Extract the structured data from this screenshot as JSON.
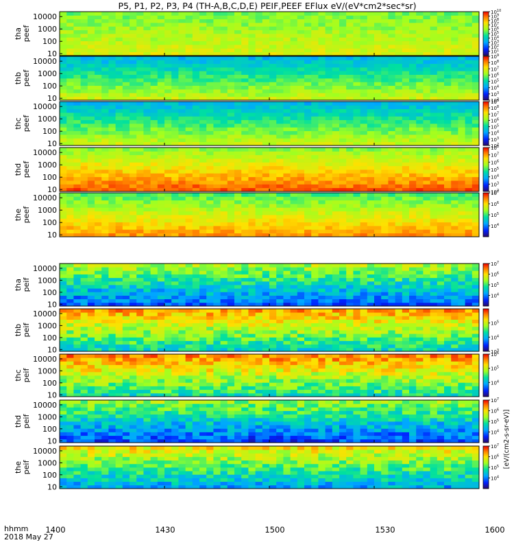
{
  "title": "P5, P1, P2, P3, P4 (TH-A,B,C,D,E) PEIF,PEEF EFlux eV/(eV*cm2*sec*sr)",
  "colorbar_unit_label": "[eV/(cm2-s-sr-eV)]",
  "x_axis": {
    "label_top": "hhmm",
    "label_bottom": "2018 May 27",
    "range": [
      "14:00",
      "16:00"
    ],
    "ticks": [
      "1400",
      "1430",
      "1500",
      "1530",
      "1600"
    ]
  },
  "y_ticks": [
    "10000",
    "1000",
    "100",
    "10"
  ],
  "chart_data": [
    {
      "type": "heatmap",
      "name": "tha peef",
      "ylabel": [
        "tha",
        "peef"
      ],
      "yscale": "log",
      "ylim": [
        7,
        25000
      ],
      "colorbar": {
        "scale": "log",
        "range": [
          1.0,
          10000000000.0
        ],
        "ticks": [
          "10^1",
          "10^2",
          "10^3",
          "10^4",
          "10^5",
          "10^6",
          "10^7",
          "10^8",
          "10^9",
          "10^10"
        ]
      },
      "level": 0.62
    },
    {
      "type": "heatmap",
      "name": "thb peef",
      "ylabel": [
        "thb",
        "peef"
      ],
      "yscale": "log",
      "ylim": [
        7,
        25000
      ],
      "colorbar": {
        "scale": "log",
        "range": [
          100.0,
          1000000000.0
        ],
        "ticks": [
          "10^2",
          "10^3",
          "10^4",
          "10^5",
          "10^6",
          "10^7",
          "10^8",
          "10^9"
        ]
      },
      "level": 0.5
    },
    {
      "type": "heatmap",
      "name": "thc peef",
      "ylabel": [
        "thc",
        "peef"
      ],
      "yscale": "log",
      "ylim": [
        7,
        25000
      ],
      "colorbar": {
        "scale": "log",
        "range": [
          100.0,
          1000000000.0
        ],
        "ticks": [
          "10^2",
          "10^3",
          "10^4",
          "10^5",
          "10^6",
          "10^7",
          "10^8",
          "10^9"
        ]
      },
      "level": 0.5
    },
    {
      "type": "heatmap",
      "name": "thd peef",
      "ylabel": [
        "thd",
        "peef"
      ],
      "yscale": "log",
      "ylim": [
        7,
        25000
      ],
      "colorbar": {
        "scale": "log",
        "range": [
          100.0,
          100000000.0
        ],
        "ticks": [
          "10^2",
          "10^3",
          "10^4",
          "10^5",
          "10^6",
          "10^7",
          "10^8"
        ]
      },
      "level": 0.75
    },
    {
      "type": "heatmap",
      "name": "the peef",
      "ylabel": [
        "the",
        "peef"
      ],
      "yscale": "log",
      "ylim": [
        7,
        25000
      ],
      "colorbar": {
        "scale": "log",
        "range": [
          1000.0,
          10000000.0
        ],
        "ticks": [
          "10^4",
          "10^5",
          "10^6",
          "10^7"
        ]
      },
      "level": 0.68
    },
    {
      "type": "heatmap",
      "name": "tha peif",
      "ylabel": [
        "tha",
        "peif"
      ],
      "yscale": "log",
      "ylim": [
        7,
        25000
      ],
      "colorbar": {
        "scale": "log",
        "range": [
          1000.0,
          10000000.0
        ],
        "ticks": [
          "10^4",
          "10^5",
          "10^6",
          "10^7"
        ]
      },
      "level": 0.35
    },
    {
      "type": "heatmap",
      "name": "thb peif",
      "ylabel": [
        "thb",
        "peif"
      ],
      "yscale": "log",
      "ylim": [
        7,
        25000
      ],
      "colorbar": {
        "scale": "log",
        "range": [
          1000.0,
          1000000.0
        ],
        "ticks": [
          "10^3",
          "10^4",
          "10^5"
        ]
      },
      "level": 0.55
    },
    {
      "type": "heatmap",
      "name": "thc peif",
      "ylabel": [
        "thc",
        "peif"
      ],
      "yscale": "log",
      "ylim": [
        7,
        25000
      ],
      "colorbar": {
        "scale": "log",
        "range": [
          1000.0,
          1000000.0
        ],
        "ticks": [
          "10^4",
          "10^5",
          "10^6"
        ]
      },
      "level": 0.58
    },
    {
      "type": "heatmap",
      "name": "thd peif",
      "ylabel": [
        "thd",
        "peif"
      ],
      "yscale": "log",
      "ylim": [
        7,
        25000
      ],
      "colorbar": {
        "scale": "log",
        "range": [
          1000.0,
          10000000.0
        ],
        "ticks": [
          "10^4",
          "10^5",
          "10^6",
          "10^7"
        ]
      },
      "level": 0.32
    },
    {
      "type": "heatmap",
      "name": "the peif",
      "ylabel": [
        "the",
        "peif"
      ],
      "yscale": "log",
      "ylim": [
        7,
        25000
      ],
      "colorbar": {
        "scale": "log",
        "range": [
          1000.0,
          10000000.0
        ],
        "ticks": [
          "10^4",
          "10^5",
          "10^6",
          "10^7"
        ]
      },
      "level": 0.45
    }
  ]
}
